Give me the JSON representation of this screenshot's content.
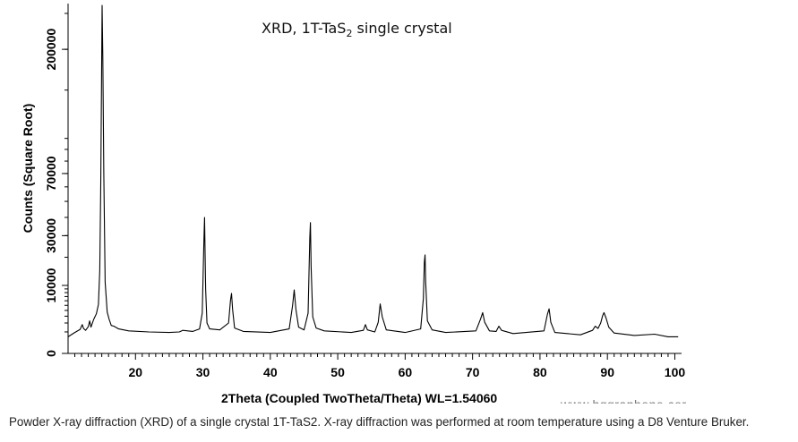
{
  "caption": "Powder X-ray diffraction (XRD) of a single crystal 1T-TaS2. X-ray diffraction was performed at room temperature using a D8 Venture Bruker.",
  "watermark": "www.hqgraphene.com",
  "chart_data": {
    "type": "line",
    "title": "XRD, 1T-TaS₂ single crystal",
    "title_parts": {
      "main": "XRD, 1T-TaS",
      "subscript": "2",
      "rest": " single crystal"
    },
    "xlabel": "2Theta (Coupled TwoTheta/Theta) WL=1.54060",
    "ylabel": "Counts (Square Root)",
    "y_scale": "sqrt",
    "xlim": [
      10,
      101
    ],
    "ylim": [
      0,
      262000
    ],
    "grid": false,
    "x_ticks": [
      "20",
      "30",
      "40",
      "50",
      "60",
      "70",
      "80",
      "90",
      "100"
    ],
    "y_ticks": [
      "0",
      "10000",
      "30000",
      "70000",
      "200000"
    ],
    "y_tick_values": [
      0,
      10000,
      30000,
      70000,
      200000
    ],
    "line_color": "#000000",
    "series": [
      {
        "x": [
          10.0,
          11.0,
          11.8,
          12.1,
          12.3,
          12.6,
          13.0,
          13.2,
          13.4,
          13.8,
          14.2,
          14.5,
          14.7,
          14.85,
          14.95,
          15.05,
          15.15,
          15.3,
          15.5,
          15.8,
          16.1,
          16.4,
          16.8,
          17.5,
          19.0,
          22.0,
          25.0,
          26.5,
          27.0,
          28.5,
          29.5,
          29.9,
          30.15,
          30.25,
          30.4,
          30.6,
          31.0,
          32.5,
          33.8,
          34.1,
          34.25,
          34.4,
          34.7,
          36.0,
          40.0,
          42.8,
          43.3,
          43.55,
          43.8,
          44.2,
          45.0,
          45.6,
          45.85,
          45.95,
          46.05,
          46.3,
          46.8,
          48.0,
          52.0,
          53.8,
          54.1,
          54.4,
          55.5,
          56.0,
          56.3,
          56.6,
          57.2,
          60.0,
          62.3,
          62.7,
          62.85,
          62.95,
          63.05,
          63.3,
          64.0,
          66.0,
          70.5,
          71.2,
          71.5,
          71.8,
          72.5,
          73.5,
          73.9,
          74.3,
          76.0,
          80.6,
          81.1,
          81.35,
          81.6,
          82.2,
          86.0,
          87.8,
          88.2,
          88.6,
          89.0,
          89.3,
          89.5,
          89.8,
          90.2,
          91.0,
          94.0,
          97.0,
          99.0,
          100.5
        ],
        "y": [
          600,
          950,
          1250,
          1800,
          1350,
          1150,
          1550,
          2300,
          1500,
          2500,
          3400,
          5200,
          15000,
          62000,
          150000,
          262000,
          190000,
          70000,
          11000,
          3700,
          2500,
          1700,
          1600,
          1300,
          1100,
          1000,
          950,
          1000,
          1150,
          1050,
          1300,
          3500,
          28000,
          40000,
          9000,
          2000,
          1300,
          1200,
          2000,
          6200,
          7800,
          4200,
          1400,
          1050,
          950,
          1300,
          5000,
          8700,
          4200,
          1500,
          1200,
          3500,
          29000,
          37000,
          16000,
          2900,
          1400,
          1100,
          950,
          1150,
          1800,
          1200,
          1000,
          2100,
          5300,
          2900,
          1200,
          950,
          1300,
          6500,
          18000,
          21000,
          11000,
          2300,
          1200,
          950,
          1100,
          2600,
          3600,
          2100,
          1100,
          1050,
          1600,
          1150,
          850,
          1100,
          3300,
          4300,
          2100,
          950,
          750,
          1150,
          1600,
          1350,
          2000,
          3100,
          3600,
          2700,
          1500,
          900,
          700,
          800,
          600,
          600
        ]
      }
    ]
  }
}
